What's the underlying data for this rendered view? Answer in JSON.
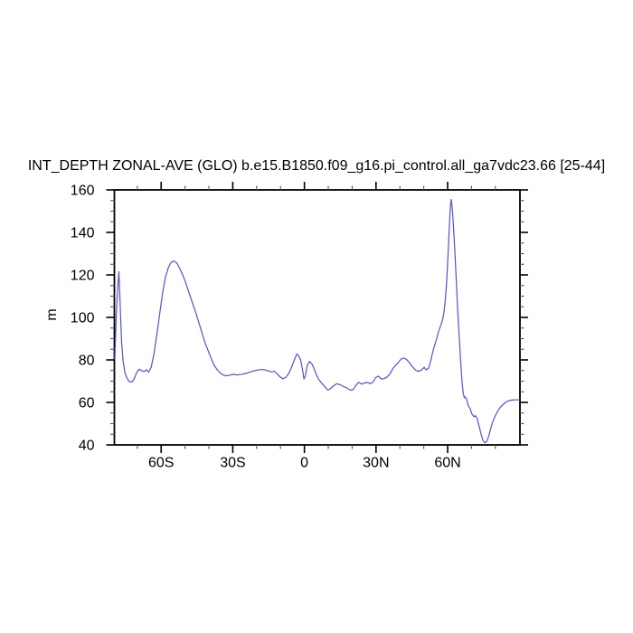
{
  "title": "INT_DEPTH ZONAL-AVE (GLO) b.e15.B1850.f09_g16.pi_control.all_ga7vdc23.66 [25-44]",
  "colors": {
    "background": "#ffffff",
    "axis": "#000000",
    "minor_tick": "#555555",
    "line": "#5252d2"
  },
  "chart_data": {
    "type": "line",
    "title": "INT_DEPTH ZONAL-AVE (GLO) b.e15.B1850.f09_g16.pi_control.all_ga7vdc23.66 [25-44]",
    "xlabel": "",
    "ylabel": "m",
    "ylim": [
      40,
      160
    ],
    "xlim": [
      -79.6,
      90.3
    ],
    "grid": false,
    "legend": false,
    "y_major_ticks": [
      160,
      140,
      120,
      100,
      80,
      60,
      40
    ],
    "y_major_tick_labels": [
      "160",
      "140",
      "120",
      "100",
      "80",
      "60",
      "40"
    ],
    "y_minor_ticks": [
      45,
      50,
      55,
      65,
      70,
      75,
      85,
      90,
      95,
      105,
      110,
      115,
      125,
      130,
      135,
      145,
      150,
      155
    ],
    "x_major_ticks": [
      -60,
      -30,
      0,
      30,
      60
    ],
    "x_major_tick_labels": [
      "60S",
      "30S",
      "0",
      "30N",
      "60N"
    ],
    "x_minor_ticks": [
      -70,
      -50,
      -40,
      -20,
      -10,
      10,
      20,
      40,
      50,
      70,
      80
    ],
    "series": [
      {
        "name": "INT_DEPTH",
        "x": [
          -79.4,
          -78.8,
          -78.2,
          -77.7,
          -77.2,
          -76.6,
          -76.0,
          -75.2,
          -74.3,
          -73.3,
          -72.3,
          -71.3,
          -70.2,
          -69.2,
          -68.2,
          -67.2,
          -66.2,
          -65.2,
          -64.2,
          -63.0,
          -61.8,
          -60.6,
          -59.4,
          -58.2,
          -57.0,
          -55.8,
          -54.6,
          -53.4,
          -52.2,
          -51.0,
          -49.8,
          -48.6,
          -47.4,
          -46.2,
          -45.0,
          -43.8,
          -42.6,
          -41.4,
          -40.2,
          -39.0,
          -37.8,
          -36.6,
          -35.4,
          -34.2,
          -33.0,
          -31.8,
          -30.6,
          -29.4,
          -28.2,
          -27.0,
          -25.8,
          -24.6,
          -23.4,
          -22.2,
          -21.0,
          -19.8,
          -18.6,
          -17.4,
          -16.2,
          -15.0,
          -13.8,
          -12.6,
          -11.4,
          -10.2,
          -9.0,
          -7.8,
          -6.6,
          -5.4,
          -4.2,
          -3.2,
          -2.4,
          -1.6,
          -0.8,
          -0.2,
          0.4,
          1.2,
          2.2,
          3.2,
          4.2,
          5.2,
          6.2,
          7.4,
          8.6,
          9.8,
          11.0,
          12.2,
          13.6,
          15.0,
          16.4,
          17.8,
          19.2,
          20.4,
          21.6,
          22.8,
          24.0,
          25.2,
          26.4,
          27.6,
          28.8,
          29.8,
          31.0,
          32.2,
          33.4,
          34.6,
          35.8,
          37.0,
          38.2,
          39.4,
          40.6,
          41.8,
          43.0,
          44.2,
          45.4,
          46.6,
          47.8,
          49.0,
          50.2,
          51.0,
          52.0,
          52.8,
          53.6,
          54.4,
          55.4,
          56.4,
          57.2,
          57.8,
          58.4,
          59.0,
          59.6,
          60.2,
          60.7,
          61.2,
          61.5,
          61.9,
          62.4,
          63.0,
          63.6,
          64.2,
          64.8,
          65.4,
          66.0,
          66.5,
          67.0,
          67.5,
          68.0,
          68.6,
          69.4,
          70.2,
          71.0,
          71.7,
          72.4,
          73.2,
          74.0,
          74.8,
          75.6,
          76.4,
          77.2,
          78.0,
          78.8,
          79.8,
          80.8,
          82.0,
          83.2,
          84.4,
          85.8,
          87.2,
          88.6,
          90.0
        ],
        "y": [
          80.5,
          101.0,
          114.0,
          121.5,
          107.0,
          89.0,
          80.0,
          74.0,
          71.3,
          69.8,
          69.6,
          71.0,
          74.3,
          75.6,
          75.0,
          74.5,
          75.3,
          74.3,
          76.5,
          83.0,
          92.0,
          102.0,
          111.5,
          119.0,
          123.5,
          126.0,
          126.5,
          125.5,
          123.0,
          120.0,
          116.5,
          112.5,
          108.5,
          104.5,
          100.5,
          96.0,
          91.5,
          87.5,
          84.0,
          80.5,
          77.5,
          75.5,
          74.0,
          73.0,
          72.5,
          72.7,
          73.0,
          73.2,
          72.9,
          73.1,
          73.3,
          73.6,
          74.0,
          74.5,
          74.9,
          75.2,
          75.4,
          75.5,
          75.2,
          74.8,
          74.4,
          74.6,
          73.5,
          72.0,
          71.1,
          71.8,
          73.5,
          76.5,
          80.0,
          82.8,
          82.0,
          80.0,
          75.5,
          71.0,
          72.5,
          77.5,
          79.3,
          78.0,
          75.5,
          72.5,
          70.5,
          68.8,
          67.3,
          65.8,
          66.5,
          67.8,
          68.8,
          68.3,
          67.5,
          66.8,
          65.8,
          66.0,
          68.0,
          69.5,
          68.6,
          69.2,
          69.4,
          68.8,
          69.6,
          71.7,
          72.4,
          71.0,
          71.2,
          72.0,
          73.3,
          75.8,
          77.5,
          78.8,
          80.5,
          80.9,
          80.0,
          78.4,
          76.6,
          75.2,
          74.6,
          75.2,
          76.5,
          75.3,
          76.0,
          79.0,
          83.0,
          86.3,
          90.0,
          94.0,
          96.5,
          98.5,
          102.0,
          108.0,
          117.0,
          130.0,
          143.0,
          153.0,
          155.5,
          152.0,
          144.0,
          132.0,
          118.0,
          104.0,
          92.0,
          80.0,
          70.0,
          64.5,
          62.2,
          62.5,
          61.5,
          58.5,
          57.2,
          54.5,
          53.3,
          53.7,
          52.3,
          48.8,
          45.0,
          42.2,
          41.0,
          41.6,
          44.0,
          47.5,
          50.5,
          53.3,
          55.5,
          57.6,
          59.0,
          60.2,
          60.9,
          61.1,
          61.2,
          61.2
        ]
      }
    ]
  }
}
